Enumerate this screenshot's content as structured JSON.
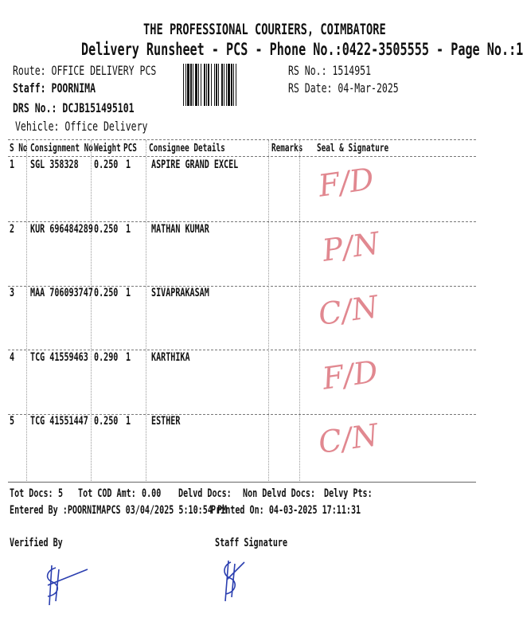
{
  "header": {
    "title": "THE PROFESSIONAL COURIERS, COIMBATORE",
    "subtitle": "Delivery Runsheet - PCS - Phone No.:0422-3505555 - Page No.:1",
    "route": "Route: OFFICE DELIVERY PCS",
    "staff": "Staff: POORNIMA",
    "drs_no": "DRS No.: DCJB151495101",
    "vehicle": "Vehicle: Office Delivery",
    "rs_no": "RS No.: 1514951",
    "rs_date": "RS Date: 04-Mar-2025"
  },
  "table": {
    "columns": [
      "S No",
      "Consignment No",
      "Weight",
      "PCS",
      "Consignee Details",
      "Remarks",
      "Seal & Signature"
    ],
    "rows": [
      {
        "sno": "1",
        "consignment": "SGL 358328",
        "weight": "0.250",
        "pcs": "1",
        "consignee": "ASPIRE GRAND EXCEL",
        "remarks": "",
        "seal": "F/D"
      },
      {
        "sno": "2",
        "consignment": "KUR 696484289",
        "weight": "0.250",
        "pcs": "1",
        "consignee": "MATHAN KUMAR",
        "remarks": "",
        "seal": "P/N"
      },
      {
        "sno": "3",
        "consignment": "MAA 706093747",
        "weight": "0.250",
        "pcs": "1",
        "consignee": "SIVAPRAKASAM",
        "remarks": "",
        "seal": "C/N"
      },
      {
        "sno": "4",
        "consignment": "TCG 41559463",
        "weight": "0.290",
        "pcs": "1",
        "consignee": "KARTHIKA",
        "remarks": "",
        "seal": "F/D"
      },
      {
        "sno": "5",
        "consignment": "TCG 41551447",
        "weight": "0.250",
        "pcs": "1",
        "consignee": "ESTHER",
        "remarks": "",
        "seal": "C/N"
      }
    ]
  },
  "summary": {
    "tot_docs_label": "Tot Docs:",
    "tot_docs": "5",
    "tot_cod_label": "Tot COD Amt:",
    "tot_cod": "0.00",
    "delvd_docs_label": "Delvd Docs:",
    "non_delvd_label": "Non Delvd Docs:",
    "delvy_pts_label": "Delvy Pts:",
    "entered_by": "Entered By :POORNIMAPCS 03/04/2025 5:10:54 PM",
    "printed_on": "Printed On: 04-03-2025 17:11:31"
  },
  "footer": {
    "verified_by": "Verified By",
    "staff_signature": "Staff Signature"
  },
  "colors": {
    "seal_ink": "#d8616b",
    "signature_ink": "#2b3fb0"
  }
}
